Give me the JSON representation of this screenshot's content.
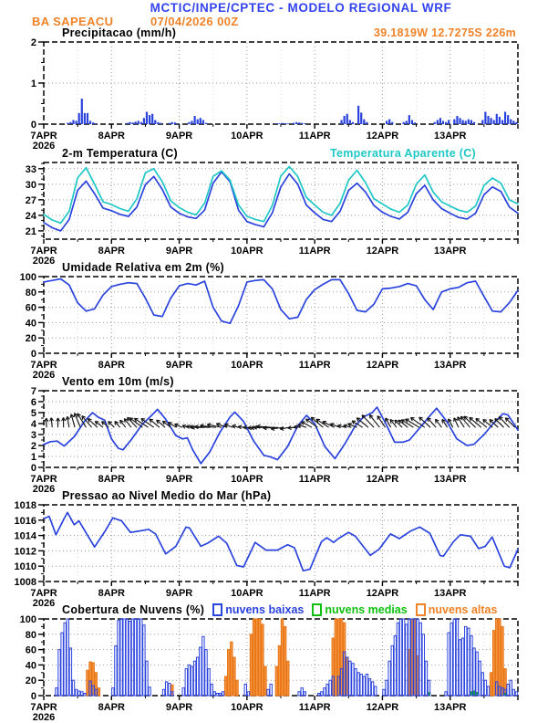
{
  "header": {
    "title": "MCTIC/INPE/CPTEC - MODELO REGIONAL WRF",
    "station": "BA SAPEACU",
    "run": "07/04/2026 00Z",
    "location": "39.1819W 12.7275S 226m"
  },
  "colors": {
    "header_blue": "#3344ee",
    "orange": "#f08228",
    "cyan": "#1fc8c6",
    "line_blue": "#2b43dd",
    "green": "#10c010",
    "black": "#000000"
  },
  "x_axis": {
    "tick_labels": [
      "7APR",
      "8APR",
      "9APR",
      "10APR",
      "11APR",
      "12APR",
      "13APR"
    ],
    "year": "2026",
    "t_range_days": [
      0,
      7
    ]
  },
  "chart_data": [
    {
      "type": "precip-bar",
      "title": "Precipitacao (mm/h)",
      "annotation": "39.1819W 12.7275S 226m",
      "ylim": [
        0,
        2
      ],
      "yticks": [
        0,
        1,
        2
      ],
      "yminor": 0.5,
      "bars": {
        "name": "precipitacao",
        "color": "#2b43dd",
        "n": 168,
        "values_sparse": {
          "8": 0.03,
          "9": 0.05,
          "10": 0.1,
          "11": 0.08,
          "12": 0.27,
          "13": 0.62,
          "14": 0.27,
          "15": 0.27,
          "16": 0.08,
          "17": 0.04,
          "18": 0.02,
          "29": 0.03,
          "30": 0.05,
          "31": 0.04,
          "32": 0.06,
          "33": 0.08,
          "34": 0.05,
          "35": 0.15,
          "36": 0.3,
          "37": 0.22,
          "38": 0.25,
          "39": 0.1,
          "40": 0.05,
          "41": 0.03,
          "44": 0.03,
          "45": 0.05,
          "46": 0.04,
          "47": 0.02,
          "51": 0.05,
          "52": 0.08,
          "53": 0.2,
          "54": 0.12,
          "55": 0.15,
          "56": 0.1,
          "57": 0.03,
          "82": 0.02,
          "83": 0.02,
          "84": 0.03,
          "85": 0.02,
          "86": 0.02,
          "88": 0.03,
          "89": 0.05,
          "90": 0.04,
          "91": 0.03,
          "92": 0.02,
          "105": 0.1,
          "106": 0.2,
          "107": 0.25,
          "108": 0.1,
          "109": 0.05,
          "111": 0.45,
          "112": 0.28,
          "113": 0.12,
          "114": 0.05,
          "121": 0.08,
          "122": 0.12,
          "123": 0.05,
          "127": 0.05,
          "128": 0.08,
          "129": 0.22,
          "130": 0.1,
          "131": 0.04,
          "138": 0.05,
          "139": 0.1,
          "140": 0.15,
          "141": 0.08,
          "142": 0.05,
          "143": 0.1,
          "145": 0.12,
          "146": 0.2,
          "147": 0.15,
          "148": 0.1,
          "149": 0.08,
          "150": 0.12,
          "151": 0.1,
          "152": 0.05,
          "155": 0.1,
          "156": 0.3,
          "157": 0.2,
          "158": 0.15,
          "159": 0.1,
          "160": 0.25,
          "161": 0.18,
          "162": 0.1,
          "163": 0.3,
          "164": 0.22,
          "165": 0.12,
          "166": 0.08,
          "167": 0.05
        }
      }
    },
    {
      "type": "line",
      "title": "2-m Temperatura (C)",
      "right_label": "Temperatura Aparente (C)",
      "ylim": [
        19.4,
        34.2
      ],
      "yticks": [
        21,
        24,
        27,
        30,
        33
      ],
      "yminor": 1,
      "series": [
        {
          "label": "2-m Temperatura (C)",
          "color": "#2b43dd",
          "v": [
            22.6,
            21.6,
            21.0,
            23.2,
            28.8,
            30.6,
            28.2,
            25.4,
            24.9,
            24.2,
            23.8,
            25.6,
            29.9,
            31.5,
            29.0,
            25.6,
            24.4,
            23.7,
            23.4,
            25.0,
            30.2,
            32.4,
            30.5,
            25.0,
            22.8,
            22.2,
            21.8,
            24.5,
            29.5,
            32.0,
            30.0,
            26.0,
            24.5,
            23.2,
            22.8,
            24.8,
            28.8,
            30.2,
            28.5,
            25.9,
            24.6,
            23.8,
            23.3,
            24.6,
            28.2,
            29.8,
            27.0,
            25.3,
            24.4,
            23.6,
            23.3,
            24.4,
            28.0,
            29.5,
            28.6,
            25.6,
            24.4
          ]
        },
        {
          "label": "Temperatura Aparente (C)",
          "color": "#1fc8c6",
          "v": [
            24.2,
            23.1,
            22.5,
            24.8,
            31.2,
            33.2,
            30.0,
            26.6,
            26.1,
            25.3,
            24.8,
            27.2,
            32.2,
            33.0,
            30.5,
            26.8,
            25.5,
            24.6,
            24.1,
            26.3,
            31.5,
            32.6,
            30.8,
            26.0,
            23.8,
            23.2,
            22.8,
            25.9,
            31.6,
            33.4,
            31.5,
            27.5,
            26.0,
            24.6,
            24.0,
            26.3,
            30.8,
            32.7,
            30.3,
            27.2,
            26.2,
            25.2,
            24.6,
            26.0,
            30.0,
            31.8,
            28.5,
            26.6,
            25.8,
            25.0,
            24.6,
            25.8,
            29.8,
            31.2,
            30.2,
            27.0,
            26.2
          ]
        }
      ]
    },
    {
      "type": "line",
      "title": "Umidade Relativa em 2m (%)",
      "ylim": [
        0,
        100
      ],
      "yticks": [
        0,
        20,
        40,
        60,
        80,
        100
      ],
      "yminor": 10,
      "series": [
        {
          "label": "umidade relativa",
          "color": "#2b43dd",
          "v": [
            93,
            95,
            97,
            89,
            66,
            55,
            58,
            76,
            87,
            90,
            92,
            91,
            72,
            50,
            48,
            72,
            88,
            91,
            89,
            94,
            60,
            42,
            39,
            62,
            93,
            95,
            96,
            84,
            57,
            45,
            47,
            70,
            83,
            90,
            96,
            96,
            78,
            56,
            54,
            64,
            84,
            85,
            87,
            91,
            88,
            70,
            57,
            80,
            84,
            86,
            92,
            94,
            74,
            55,
            54,
            66,
            82
          ]
        }
      ]
    },
    {
      "type": "wind",
      "title": "Vento em 10m (m/s)",
      "ylim": [
        0,
        7
      ],
      "yticks": [
        0,
        1,
        2,
        3,
        4,
        5,
        6,
        7
      ],
      "yminor": 0.5,
      "series": [
        {
          "label": "velocidade do vento",
          "color": "#2b43dd",
          "t": [
            0,
            0.1,
            0.2,
            0.3,
            0.45,
            0.6,
            0.72,
            0.8,
            0.9,
            1.0,
            1.1,
            1.17,
            1.3,
            1.45,
            1.6,
            1.68,
            1.8,
            1.95,
            2.05,
            2.12,
            2.2,
            2.32,
            2.45,
            2.6,
            2.75,
            2.82,
            2.95,
            3.1,
            3.25,
            3.35,
            3.45,
            3.6,
            3.75,
            3.88,
            4.0,
            4.15,
            4.3,
            4.45,
            4.6,
            4.72,
            4.85,
            4.92,
            5.05,
            5.18,
            5.3,
            5.4,
            5.55,
            5.7,
            5.8,
            5.95,
            6.1,
            6.25,
            6.35,
            6.5,
            6.65,
            6.78,
            6.85,
            6.95,
            7.0
          ],
          "v": [
            2.1,
            2.35,
            2.4,
            1.95,
            2.8,
            4.2,
            5.0,
            4.6,
            4.3,
            2.6,
            1.75,
            1.6,
            2.6,
            3.9,
            4.8,
            5.3,
            4.4,
            2.9,
            2.6,
            2.7,
            1.6,
            0.35,
            1.4,
            3.2,
            4.6,
            5.05,
            4.2,
            2.4,
            1.1,
            0.95,
            0.7,
            1.9,
            3.8,
            4.75,
            4.0,
            1.9,
            0.8,
            2.2,
            3.8,
            4.6,
            5.0,
            5.5,
            4.0,
            2.3,
            2.3,
            2.5,
            3.6,
            4.7,
            5.4,
            4.2,
            2.6,
            2.0,
            2.1,
            3.0,
            4.1,
            4.9,
            4.8,
            3.9,
            3.4
          ]
        }
      ],
      "arrows": {
        "name": "vetores de vento",
        "color": "#111111",
        "anchor": 3.65,
        "angles_deg_from_north": [
          0,
          -6,
          4,
          -10,
          -18,
          -32,
          -45,
          -52,
          -48,
          -40,
          -36,
          -44,
          -58,
          -55,
          -48,
          -52,
          -62,
          -72,
          -84,
          -90,
          -86,
          -78,
          -68,
          -74,
          -88,
          -95,
          -92,
          -86,
          -96,
          -100,
          -92,
          -72,
          -56,
          -50,
          -60,
          -70,
          -80,
          -68,
          -54,
          -44,
          -36,
          -30,
          -42,
          -52,
          -60,
          -55,
          -44,
          -38,
          -30,
          -26,
          -36,
          -46,
          -52,
          -50,
          -46,
          -44,
          -46
        ],
        "speeds": [
          2.1,
          2.4,
          2.2,
          2.9,
          4.4,
          5.0,
          4.2,
          2.5,
          2.0,
          1.7,
          2.4,
          4.0,
          5.2,
          4.6,
          3.2,
          2.6,
          2.2,
          0.8,
          1.6,
          3.8,
          5.0,
          4.3,
          2.4,
          1.1,
          0.9,
          1.5,
          3.2,
          4.7,
          4.2,
          2.2,
          0.9,
          2.0,
          3.9,
          4.7,
          4.3,
          2.6,
          1.4,
          2.4,
          4.0,
          5.3,
          4.6,
          2.8,
          2.4,
          3.2,
          4.6,
          5.3,
          4.1,
          2.6,
          2.2,
          2.7,
          3.8,
          4.8,
          4.5,
          3.4,
          3.0,
          4.4,
          3.6
        ]
      }
    },
    {
      "type": "line",
      "title": "Pressao ao Nivel Medio do Mar (hPa)",
      "ylim": [
        1008,
        1018
      ],
      "yticks": [
        1008,
        1010,
        1012,
        1014,
        1016,
        1018
      ],
      "yminor": 1,
      "series": [
        {
          "label": "pressao ao nivel medio do mar",
          "color": "#2b43dd",
          "t": [
            0,
            0.08,
            0.18,
            0.3,
            0.35,
            0.45,
            0.52,
            0.62,
            0.75,
            0.9,
            1.02,
            1.15,
            1.28,
            1.42,
            1.55,
            1.65,
            1.8,
            1.95,
            2.1,
            2.15,
            2.32,
            2.42,
            2.58,
            2.7,
            2.85,
            2.95,
            3.12,
            3.28,
            3.45,
            3.6,
            3.7,
            3.83,
            3.93,
            4.1,
            4.18,
            4.28,
            4.35,
            4.5,
            4.6,
            4.82,
            4.95,
            5.12,
            5.25,
            5.42,
            5.55,
            5.7,
            5.85,
            5.9,
            6.05,
            6.15,
            6.3,
            6.42,
            6.52,
            6.62,
            6.8,
            6.88,
            7.0
          ],
          "v": [
            1016.2,
            1016.5,
            1014.1,
            1016.2,
            1017.0,
            1015.4,
            1015.9,
            1014.4,
            1012.5,
            1014.5,
            1016.3,
            1015.9,
            1014.4,
            1014.6,
            1014.8,
            1014.2,
            1011.6,
            1012.6,
            1015.1,
            1015.0,
            1012.6,
            1013.0,
            1013.9,
            1013.0,
            1010.1,
            1009.9,
            1013.1,
            1012.1,
            1012.1,
            1012.8,
            1012.4,
            1009.4,
            1009.6,
            1013.2,
            1013.7,
            1013.1,
            1013.6,
            1014.4,
            1013.9,
            1011.4,
            1012.2,
            1014.2,
            1013.6,
            1014.6,
            1015.1,
            1014.3,
            1011.4,
            1011.3,
            1013.2,
            1014.1,
            1013.9,
            1012.3,
            1012.6,
            1013.8,
            1010.0,
            1009.8,
            1012.2
          ]
        }
      ]
    },
    {
      "type": "cloud-bars",
      "title": "Cobertura de Nuvens (%)",
      "ylim": [
        0,
        100
      ],
      "yticks": [
        0,
        20,
        40,
        60,
        80,
        100
      ],
      "yminor": 10,
      "legend": [
        {
          "label": "nuvens baixas",
          "color": "#2b43dd"
        },
        {
          "label": "nuvens medias",
          "color": "#10c010"
        },
        {
          "label": "nuvens altas",
          "color": "#f08228"
        }
      ],
      "high": {
        "name": "nuvens altas",
        "fill": "#f49440",
        "stroke": "#e87414",
        "n": 168,
        "values_sparse": {
          "15": 33,
          "16": 44,
          "17": 43,
          "18": 30,
          "19": 10,
          "45": 14,
          "64": 25,
          "65": 60,
          "66": 70,
          "67": 50,
          "68": 20,
          "73": 80,
          "74": 100,
          "75": 100,
          "76": 100,
          "77": 93,
          "78": 38,
          "82": 38,
          "83": 65,
          "84": 100,
          "85": 90,
          "86": 45,
          "102": 75,
          "103": 100,
          "104": 100,
          "105": 100,
          "106": 95,
          "107": 50,
          "129": 60,
          "130": 100,
          "131": 100,
          "132": 52,
          "158": 30,
          "159": 85,
          "160": 100,
          "161": 100,
          "162": 90,
          "163": 35
        }
      },
      "mid": {
        "name": "nuvens medias",
        "fill": "#18c418",
        "stroke": "#0ea00e",
        "n": 168,
        "values_sparse": {
          "136": 4,
          "151": 5,
          "152": 6,
          "153": 4,
          "163": 3
        }
      },
      "low": {
        "name": "nuvens baixas",
        "fill": "none",
        "stroke": "#2b43dd",
        "n": 168,
        "values_sparse": {
          "4": 10,
          "5": 60,
          "6": 82,
          "7": 95,
          "8": 100,
          "9": 62,
          "10": 20,
          "11": 8,
          "12": 6,
          "13": 5,
          "14": 3,
          "16": 19,
          "17": 13,
          "18": 8,
          "24": 10,
          "25": 65,
          "26": 98,
          "27": 100,
          "28": 100,
          "29": 100,
          "30": 97,
          "31": 100,
          "32": 100,
          "33": 100,
          "34": 100,
          "35": 92,
          "36": 45,
          "37": 11,
          "42": 8,
          "43": 18,
          "44": 16,
          "45": 5,
          "49": 10,
          "50": 35,
          "51": 40,
          "52": 38,
          "53": 45,
          "54": 50,
          "55": 63,
          "56": 77,
          "57": 60,
          "58": 35,
          "59": 15,
          "60": 5,
          "61": 3,
          "62": 3,
          "63": 5,
          "71": 15,
          "72": 5,
          "79": 8,
          "80": 15,
          "90": 5,
          "91": 10,
          "92": 5,
          "97": 3,
          "98": 5,
          "99": 10,
          "100": 15,
          "101": 20,
          "102": 25,
          "104": 25,
          "105": 35,
          "106": 57,
          "107": 50,
          "108": 45,
          "109": 42,
          "110": 35,
          "111": 30,
          "112": 28,
          "113": 25,
          "114": 28,
          "115": 22,
          "116": 18,
          "117": 12,
          "120": 8,
          "121": 20,
          "122": 45,
          "123": 65,
          "124": 78,
          "125": 95,
          "126": 100,
          "127": 100,
          "128": 93,
          "129": 100,
          "130": 100,
          "131": 100,
          "132": 100,
          "133": 95,
          "134": 80,
          "135": 45,
          "136": 20,
          "142": 5,
          "143": 82,
          "144": 95,
          "145": 100,
          "146": 100,
          "147": 73,
          "148": 75,
          "149": 90,
          "150": 88,
          "151": 78,
          "152": 62,
          "153": 57,
          "154": 45,
          "155": 30,
          "156": 20,
          "157": 12,
          "160": 18,
          "161": 12,
          "162": 10,
          "163": 8,
          "164": 15,
          "165": 20,
          "166": 8,
          "167": 5
        }
      }
    }
  ]
}
